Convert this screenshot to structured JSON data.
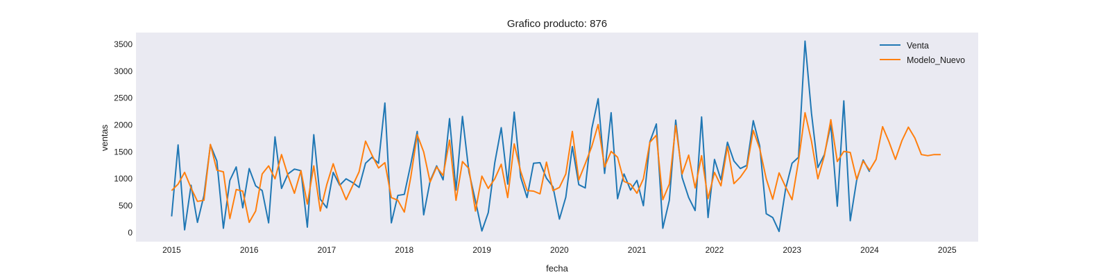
{
  "chart_data": {
    "type": "line",
    "title": "Grafico producto: 876",
    "xlabel": "fecha",
    "ylabel": "ventas",
    "x_ticks": [
      "2015",
      "2016",
      "2017",
      "2018",
      "2019",
      "2020",
      "2021",
      "2022",
      "2023",
      "2024",
      "2025"
    ],
    "y_ticks": [
      "0",
      "500",
      "1000",
      "1500",
      "2000",
      "2500",
      "3000",
      "3500"
    ],
    "xlim": [
      2014.54,
      2025.4
    ],
    "ylim": [
      -170,
      3720
    ],
    "grid": false,
    "background": "#eaeaf2",
    "legend_position": "upper right",
    "series": [
      {
        "name": "Venta",
        "color": "#1f77b4",
        "x": [
          2015.0,
          2015.083,
          2015.167,
          2015.25,
          2015.333,
          2015.417,
          2015.5,
          2015.583,
          2015.667,
          2015.75,
          2015.833,
          2015.917,
          2016.0,
          2016.083,
          2016.167,
          2016.25,
          2016.333,
          2016.417,
          2016.5,
          2016.583,
          2016.667,
          2016.75,
          2016.833,
          2016.917,
          2017.0,
          2017.083,
          2017.167,
          2017.25,
          2017.333,
          2017.417,
          2017.5,
          2017.583,
          2017.667,
          2017.75,
          2017.833,
          2017.917,
          2018.0,
          2018.083,
          2018.167,
          2018.25,
          2018.333,
          2018.417,
          2018.5,
          2018.583,
          2018.667,
          2018.75,
          2018.833,
          2018.917,
          2019.0,
          2019.083,
          2019.167,
          2019.25,
          2019.333,
          2019.417,
          2019.5,
          2019.583,
          2019.667,
          2019.75,
          2019.833,
          2019.917,
          2020.0,
          2020.083,
          2020.167,
          2020.25,
          2020.333,
          2020.417,
          2020.5,
          2020.583,
          2020.667,
          2020.75,
          2020.833,
          2020.917,
          2021.0,
          2021.083,
          2021.167,
          2021.25,
          2021.333,
          2021.417,
          2021.5,
          2021.583,
          2021.667,
          2021.75,
          2021.833,
          2021.917,
          2022.0,
          2022.083,
          2022.167,
          2022.25,
          2022.333,
          2022.417,
          2022.5,
          2022.583,
          2022.667,
          2022.75,
          2022.833,
          2022.917,
          2023.0,
          2023.083,
          2023.167,
          2023.25,
          2023.333,
          2023.417,
          2023.5,
          2023.583,
          2023.667,
          2023.75,
          2023.833,
          2023.917,
          2024.0
        ],
        "y": [
          300,
          1630,
          50,
          880,
          190,
          690,
          1630,
          1330,
          80,
          970,
          1220,
          460,
          1190,
          870,
          780,
          180,
          1780,
          820,
          1090,
          1180,
          1150,
          100,
          1820,
          620,
          460,
          1120,
          880,
          1000,
          930,
          840,
          1290,
          1400,
          1290,
          2410,
          180,
          690,
          710,
          1270,
          1880,
          330,
          960,
          1240,
          980,
          2120,
          790,
          2160,
          1130,
          590,
          30,
          370,
          1300,
          1950,
          900,
          2240,
          1030,
          650,
          1290,
          1300,
          1010,
          850,
          250,
          660,
          1600,
          890,
          830,
          1930,
          2490,
          1100,
          2230,
          630,
          1090,
          790,
          970,
          500,
          1690,
          2020,
          80,
          600,
          2090,
          1020,
          650,
          410,
          2150,
          280,
          1360,
          980,
          1680,
          1330,
          1190,
          1250,
          2080,
          1610,
          350,
          280,
          20,
          810,
          1290,
          1400,
          3560,
          2220,
          1210,
          1450,
          2010,
          490,
          2450,
          220,
          970,
          1350,
          1130
        ]
      },
      {
        "name": "Modelo_Nuevo",
        "color": "#ff7f0e",
        "x": [
          2015.0,
          2015.083,
          2015.167,
          2015.25,
          2015.333,
          2015.417,
          2015.5,
          2015.583,
          2015.667,
          2015.75,
          2015.833,
          2015.917,
          2016.0,
          2016.083,
          2016.167,
          2016.25,
          2016.333,
          2016.417,
          2016.5,
          2016.583,
          2016.667,
          2016.75,
          2016.833,
          2016.917,
          2017.0,
          2017.083,
          2017.167,
          2017.25,
          2017.333,
          2017.417,
          2017.5,
          2017.583,
          2017.667,
          2017.75,
          2017.833,
          2017.917,
          2018.0,
          2018.083,
          2018.167,
          2018.25,
          2018.333,
          2018.417,
          2018.5,
          2018.583,
          2018.667,
          2018.75,
          2018.833,
          2018.917,
          2019.0,
          2019.083,
          2019.167,
          2019.25,
          2019.333,
          2019.417,
          2019.5,
          2019.583,
          2019.667,
          2019.75,
          2019.833,
          2019.917,
          2020.0,
          2020.083,
          2020.167,
          2020.25,
          2020.333,
          2020.417,
          2020.5,
          2020.583,
          2020.667,
          2020.75,
          2020.833,
          2020.917,
          2021.0,
          2021.083,
          2021.167,
          2021.25,
          2021.333,
          2021.417,
          2021.5,
          2021.583,
          2021.667,
          2021.75,
          2021.833,
          2021.917,
          2022.0,
          2022.083,
          2022.167,
          2022.25,
          2022.333,
          2022.417,
          2022.5,
          2022.583,
          2022.667,
          2022.75,
          2022.833,
          2022.917,
          2023.0,
          2023.083,
          2023.167,
          2023.25,
          2023.333,
          2023.417,
          2023.5,
          2023.583,
          2023.667,
          2023.75,
          2023.833,
          2023.917,
          2024.0,
          2024.083,
          2024.167,
          2024.25,
          2024.333,
          2024.417,
          2024.5,
          2024.583,
          2024.667,
          2024.75,
          2024.833,
          2024.917
        ],
        "y": [
          780,
          900,
          1120,
          830,
          580,
          600,
          1640,
          1160,
          1130,
          260,
          800,
          770,
          190,
          400,
          1090,
          1240,
          1000,
          1450,
          1060,
          730,
          1150,
          530,
          1240,
          400,
          890,
          1280,
          900,
          610,
          870,
          1130,
          1700,
          1440,
          1200,
          1300,
          650,
          600,
          380,
          1030,
          1820,
          1500,
          940,
          1220,
          1060,
          1720,
          600,
          1320,
          1190,
          400,
          1050,
          820,
          1000,
          1270,
          650,
          1650,
          1140,
          780,
          770,
          720,
          1310,
          780,
          840,
          1090,
          1880,
          980,
          1280,
          1600,
          2010,
          1220,
          1510,
          1400,
          950,
          900,
          730,
          1000,
          1680,
          1810,
          610,
          900,
          1990,
          1090,
          1440,
          830,
          1430,
          630,
          1120,
          870,
          1600,
          910,
          1030,
          1200,
          1900,
          1560,
          1000,
          620,
          1110,
          850,
          610,
          1330,
          2230,
          1700,
          1000,
          1430,
          2100,
          1320,
          1510,
          1490,
          990,
          1330,
          1160,
          1360,
          1970,
          1690,
          1360,
          1710,
          1960,
          1760,
          1450,
          1430,
          1450,
          1450
        ]
      }
    ]
  }
}
